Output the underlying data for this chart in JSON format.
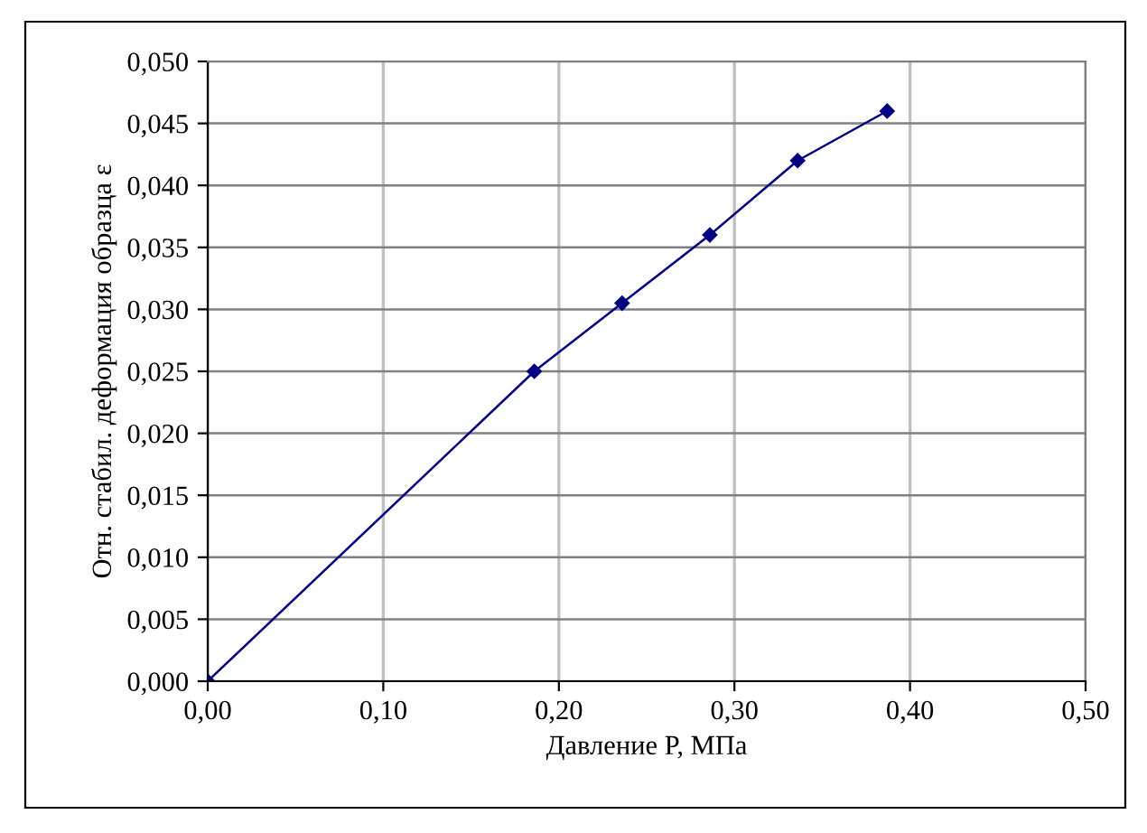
{
  "chart_data": {
    "type": "line",
    "xlabel": "Давление P, МПа",
    "ylabel": "Отн. стабил. деформация образца ε",
    "x": [
      0.0,
      0.186,
      0.236,
      0.286,
      0.336,
      0.387
    ],
    "series": [
      {
        "color": "#000080",
        "values": [
          0.0,
          0.025,
          0.0305,
          0.036,
          0.042,
          0.046
        ]
      }
    ],
    "xlim": [
      0,
      0.5
    ],
    "xticks": [
      {
        "value": 0,
        "label": "0,00"
      },
      {
        "value": 0.1,
        "label": "0,10"
      },
      {
        "value": 0.2,
        "label": "0,20"
      },
      {
        "value": 0.3,
        "label": "0,30"
      },
      {
        "value": 0.4,
        "label": "0,40"
      },
      {
        "value": 0.5,
        "label": "0,50"
      }
    ],
    "ylim": [
      0,
      0.05
    ],
    "yticks": [
      {
        "value": 0,
        "label": "0,000"
      },
      {
        "value": 0.005,
        "label": "0,005"
      },
      {
        "value": 0.01,
        "label": "0,010"
      },
      {
        "value": 0.015,
        "label": "0,015"
      },
      {
        "value": 0.02,
        "label": "0,020"
      },
      {
        "value": 0.025,
        "label": "0,025"
      },
      {
        "value": 0.03,
        "label": "0,030"
      },
      {
        "value": 0.035,
        "label": "0,035"
      },
      {
        "value": 0.04,
        "label": "0,040"
      },
      {
        "value": 0.045,
        "label": "0,045"
      },
      {
        "value": 0.05,
        "label": "0,050"
      }
    ],
    "grid": true,
    "legend": false,
    "marker": "diamond",
    "line_style": "solid"
  }
}
